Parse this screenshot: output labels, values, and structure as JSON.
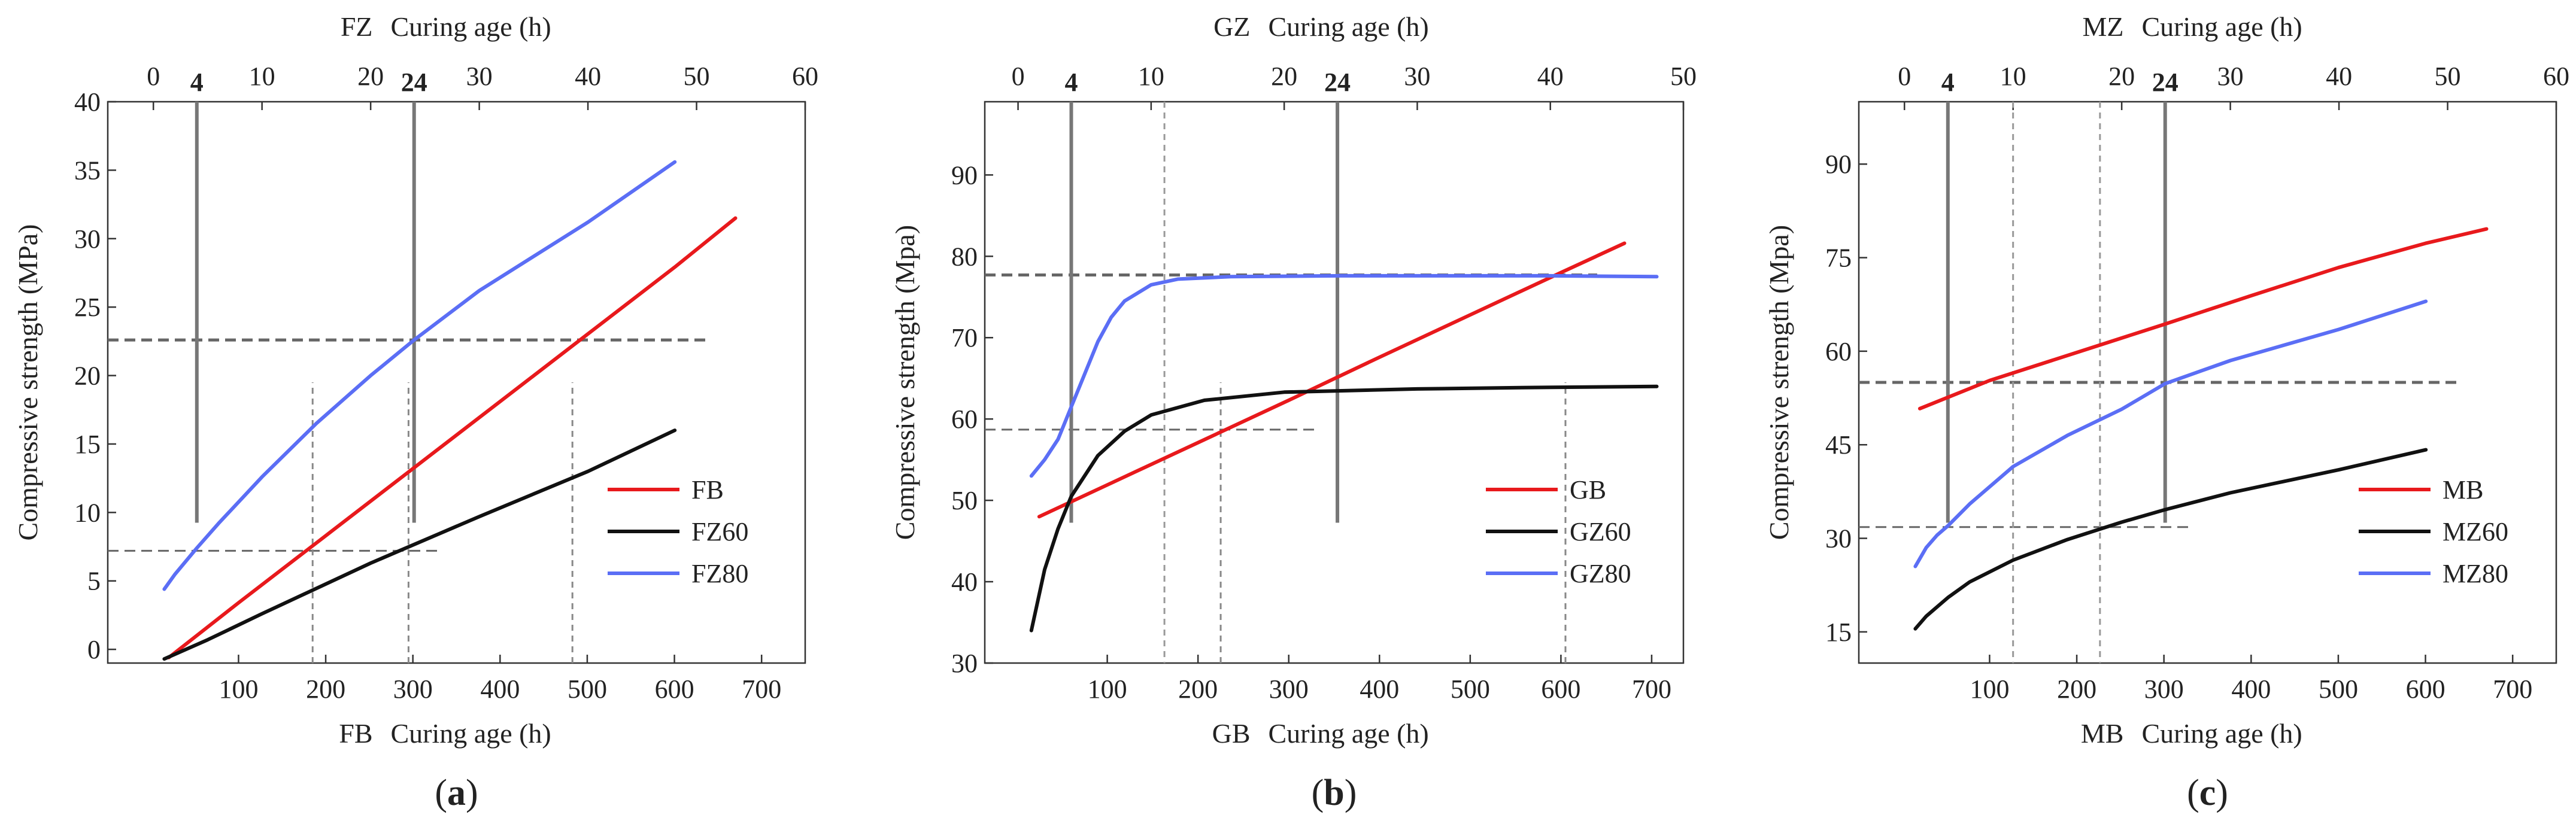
{
  "chart_data": [
    {
      "type": "line",
      "caption": "a",
      "ylabel": "Compressive strength (MPa)",
      "bottom_axis": {
        "prefix": "FB",
        "label": "Curing age (h)",
        "range": [
          -50,
          750
        ],
        "ticks": [
          100,
          200,
          300,
          400,
          500,
          600,
          700
        ]
      },
      "top_axis": {
        "prefix": "FZ",
        "label": "Curing age (h)",
        "range": [
          -4.2,
          60
        ],
        "ticks": [
          0,
          10,
          20,
          30,
          40,
          50,
          60
        ]
      },
      "ylim": [
        -1,
        40
      ],
      "yticks": [
        0,
        5,
        10,
        15,
        20,
        25,
        30,
        35,
        40
      ],
      "top_markers": [
        {
          "x": 4,
          "label": "4"
        },
        {
          "x": 24,
          "label": "24"
        }
      ],
      "series": [
        {
          "name": "FB",
          "color": "#e8191c",
          "axis": "bottom",
          "x": [
            20,
            100,
            200,
            300,
            400,
            500,
            600,
            670
          ],
          "y": [
            -0.6,
            3.4,
            8.3,
            13.2,
            18.1,
            23.0,
            27.9,
            31.5
          ]
        },
        {
          "name": "FZ60",
          "color": "#111111",
          "axis": "top",
          "x": [
            1,
            5,
            10,
            20,
            30,
            40,
            48
          ],
          "y": [
            -0.7,
            0.7,
            2.6,
            6.3,
            9.7,
            13.0,
            16.0
          ]
        },
        {
          "name": "FZ80",
          "color": "#5b6ef5",
          "axis": "top",
          "x": [
            1,
            2,
            4,
            6,
            10,
            15,
            20,
            24,
            30,
            40,
            48
          ],
          "y": [
            4.4,
            5.5,
            7.4,
            9.2,
            12.6,
            16.5,
            20.0,
            22.6,
            26.2,
            31.2,
            35.6
          ]
        }
      ],
      "guides": {
        "top_x": [
          4,
          24
        ],
        "bottom_x": [
          185,
          295,
          483
        ],
        "y": [
          7.2,
          22.6
        ]
      }
    },
    {
      "type": "line",
      "caption": "b",
      "ylabel": "Compressive strength (Mpa)",
      "bottom_axis": {
        "prefix": "GB",
        "label": "Curing age (h)",
        "range": [
          -35,
          735
        ],
        "ticks": [
          100,
          200,
          300,
          400,
          500,
          600,
          700
        ]
      },
      "top_axis": {
        "prefix": "GZ",
        "label": "Curing age (h)",
        "range": [
          -2.5,
          50
        ],
        "ticks": [
          0,
          10,
          20,
          30,
          40,
          50
        ]
      },
      "ylim": [
        30,
        99
      ],
      "yticks": [
        30,
        40,
        50,
        60,
        70,
        80,
        90
      ],
      "top_markers": [
        {
          "x": 4,
          "label": "4"
        },
        {
          "x": 24,
          "label": "24"
        }
      ],
      "series": [
        {
          "name": "GB",
          "color": "#e8191c",
          "axis": "bottom",
          "x": [
            25,
            100,
            200,
            300,
            400,
            500,
            600,
            670
          ],
          "y": [
            48.0,
            51.9,
            57.1,
            62.3,
            67.6,
            72.8,
            78.0,
            81.6
          ]
        },
        {
          "name": "GZ60",
          "color": "#111111",
          "axis": "top",
          "x": [
            1,
            2,
            3,
            4,
            6,
            8,
            10,
            14,
            20,
            30,
            40,
            48
          ],
          "y": [
            34,
            41.5,
            46.5,
            50.5,
            55.5,
            58.5,
            60.5,
            62.3,
            63.3,
            63.7,
            63.9,
            64.0
          ]
        },
        {
          "name": "GZ80",
          "color": "#5b6ef5",
          "axis": "top",
          "x": [
            1,
            2,
            3,
            4,
            5,
            6,
            7,
            8,
            10,
            12,
            16,
            24,
            30,
            40,
            48
          ],
          "y": [
            53,
            55,
            57.5,
            61.5,
            65.5,
            69.5,
            72.5,
            74.5,
            76.5,
            77.2,
            77.5,
            77.6,
            77.6,
            77.6,
            77.5
          ]
        }
      ],
      "guides": {
        "top_x": [
          4,
          11,
          24
        ],
        "bottom_x": [
          225,
          605
        ],
        "y": [
          58.7,
          77.7
        ]
      }
    },
    {
      "type": "line",
      "caption": "c",
      "ylabel": "Compressive strength (Mpa)",
      "bottom_axis": {
        "prefix": "MB",
        "label": "Curing age (h)",
        "range": [
          -50,
          750
        ],
        "ticks": [
          100,
          200,
          300,
          400,
          500,
          600,
          700
        ]
      },
      "top_axis": {
        "prefix": "MZ",
        "label": "Curing age (h)",
        "range": [
          -4.2,
          60
        ],
        "ticks": [
          0,
          10,
          20,
          30,
          40,
          50,
          60
        ]
      },
      "ylim": [
        10,
        100
      ],
      "yticks": [
        15,
        30,
        45,
        60,
        75,
        90
      ],
      "top_markers": [
        {
          "x": 4,
          "label": "4"
        },
        {
          "x": 24,
          "label": "24"
        }
      ],
      "series": [
        {
          "name": "MB",
          "color": "#e8191c",
          "axis": "bottom",
          "x": [
            20,
            100,
            200,
            300,
            400,
            500,
            600,
            670
          ],
          "y": [
            50.8,
            55.3,
            59.8,
            64.3,
            68.9,
            73.4,
            77.3,
            79.6
          ]
        },
        {
          "name": "MZ60",
          "color": "#111111",
          "axis": "top",
          "x": [
            1,
            2,
            4,
            6,
            10,
            15,
            20,
            24,
            30,
            40,
            48
          ],
          "y": [
            15.5,
            17.5,
            20.5,
            23,
            26.5,
            29.8,
            32.6,
            34.6,
            37.3,
            41.0,
            44.2
          ]
        },
        {
          "name": "MZ80",
          "color": "#5b6ef5",
          "axis": "top",
          "x": [
            1,
            2,
            3,
            4,
            6,
            10,
            15,
            20,
            24,
            30,
            40,
            48
          ],
          "y": [
            25.5,
            28.5,
            30.5,
            32,
            35.5,
            41.5,
            46.5,
            50.7,
            54.8,
            58.5,
            63.5,
            68.0
          ]
        }
      ],
      "guides": {
        "top_x": [
          4,
          10,
          18,
          24
        ],
        "y": [
          31.8,
          55.0
        ]
      }
    }
  ]
}
